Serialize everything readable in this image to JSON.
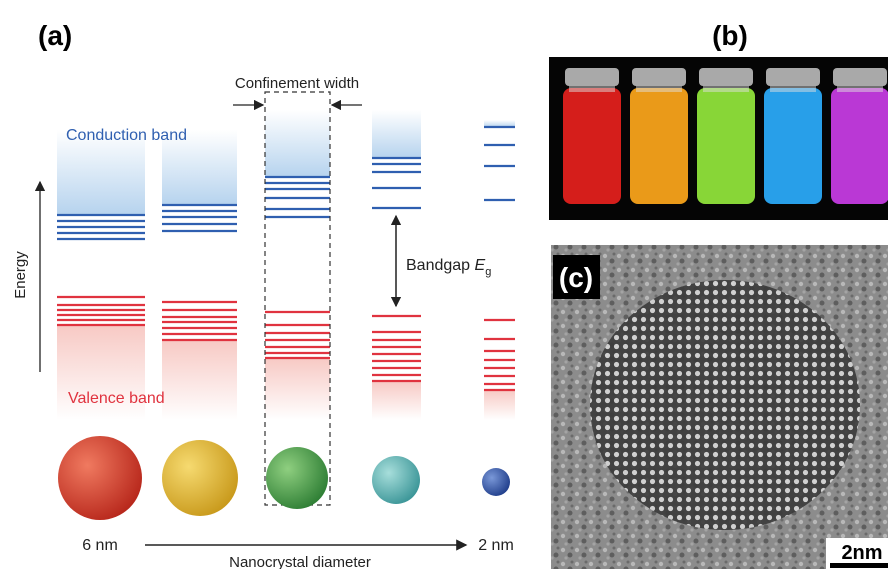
{
  "panel_a": {
    "label": "(a)",
    "confinement_width": "Confinement width",
    "conduction_band": "Conduction band",
    "energy": "Energy",
    "bandgap": {
      "text": "Bandgap",
      "symbol": "E",
      "subscript": "g"
    },
    "valence_band": "Valence band",
    "size_large": "6 nm",
    "axis_label": "Nanocrystal diameter",
    "size_small": "2 nm"
  },
  "panel_b": {
    "label": "(b)"
  },
  "panel_c": {
    "label": "(c)",
    "scale_bar": "2nm"
  }
}
